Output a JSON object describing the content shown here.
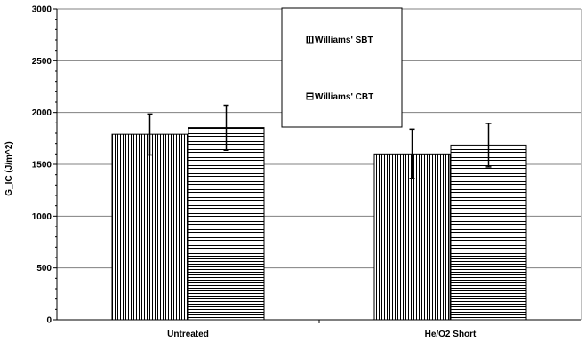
{
  "chart_data": {
    "type": "bar",
    "categories": [
      "Untreated",
      "He/O2 Short"
    ],
    "series": [
      {
        "name": "Williams' SBT",
        "pattern": "vertical-lines",
        "values": [
          1790,
          1600
        ],
        "error": [
          [
            1590,
            1985
          ],
          [
            1365,
            1840
          ]
        ]
      },
      {
        "name": "Williams' CBT",
        "pattern": "horizontal-lines",
        "values": [
          1855,
          1685
        ],
        "error": [
          [
            1635,
            2070
          ],
          [
            1475,
            1895
          ]
        ]
      }
    ],
    "ylabel": "G_IC (J/m^2)",
    "xlabel": "",
    "ylim": [
      0,
      3000
    ],
    "yticks": [
      "0",
      "500",
      "1000",
      "1500",
      "2000",
      "2500",
      "3000"
    ],
    "grid": true,
    "legend_position": "top-center"
  }
}
